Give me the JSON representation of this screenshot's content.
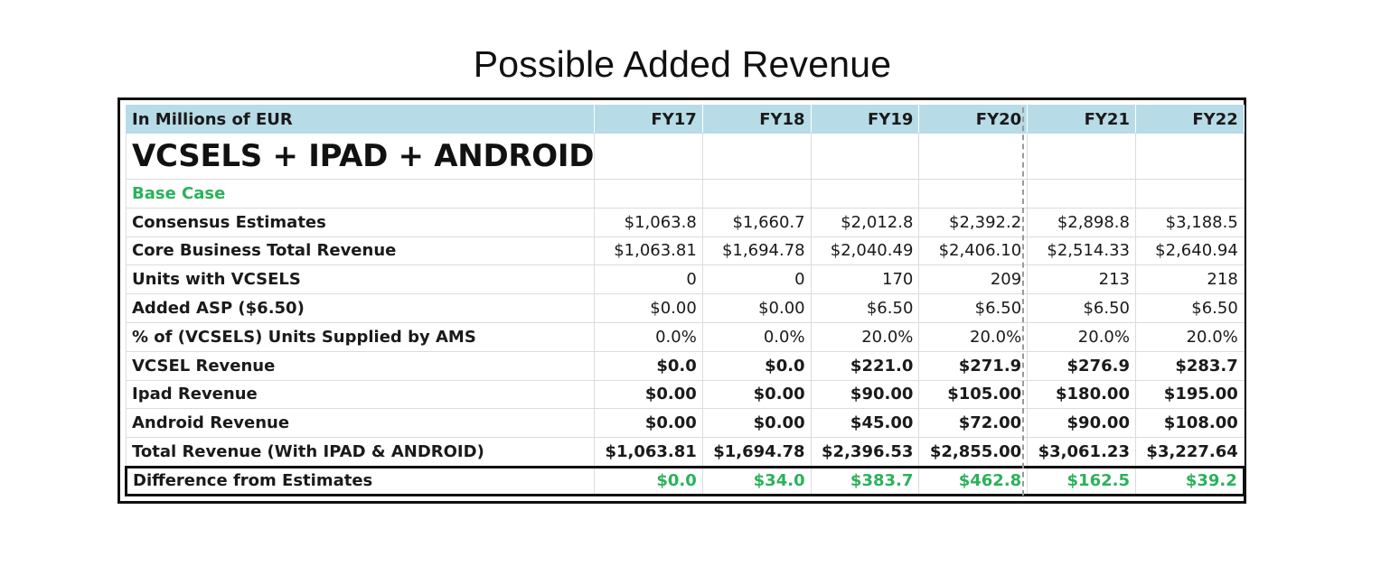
{
  "title": "Possible Added Revenue",
  "colors": {
    "header_bg": "#b7dce7",
    "accent_green": "#2bb25a",
    "border_dark": "#111111"
  },
  "table": {
    "unit_label": "In Millions of EUR",
    "columns": [
      "FY17",
      "FY18",
      "FY19",
      "FY20",
      "FY21",
      "FY22"
    ],
    "group_label": "VCSELS + IPAD + ANDROID",
    "case_label": "Base Case",
    "rows": [
      {
        "label": "Consensus Estimates",
        "values": [
          "$1,063.8",
          "$1,660.7",
          "$2,012.8",
          "$2,392.2",
          "$2,898.8",
          "$3,188.5"
        ]
      },
      {
        "label": "Core Business Total Revenue",
        "values": [
          "$1,063.81",
          "$1,694.78",
          "$2,040.49",
          "$2,406.10",
          "$2,514.33",
          "$2,640.94"
        ]
      },
      {
        "label": "Units with VCSELS",
        "values": [
          "0",
          "0",
          "170",
          "209",
          "213",
          "218"
        ]
      },
      {
        "label": "Added ASP ($6.50)",
        "values": [
          "$0.00",
          "$0.00",
          "$6.50",
          "$6.50",
          "$6.50",
          "$6.50"
        ]
      },
      {
        "label": "% of (VCSELS) Units Supplied by AMS",
        "values": [
          "0.0%",
          "0.0%",
          "20.0%",
          "20.0%",
          "20.0%",
          "20.0%"
        ]
      },
      {
        "label": "VCSEL Revenue",
        "values": [
          "$0.0",
          "$0.0",
          "$221.0",
          "$271.9",
          "$276.9",
          "$283.7"
        ]
      },
      {
        "label": "Ipad Revenue",
        "values": [
          "$0.00",
          "$0.00",
          "$90.00",
          "$105.00",
          "$180.00",
          "$195.00"
        ]
      },
      {
        "label": "Android Revenue",
        "values": [
          "$0.00",
          "$0.00",
          "$45.00",
          "$72.00",
          "$90.00",
          "$108.00"
        ]
      },
      {
        "label": "Total Revenue (With IPAD & ANDROID)",
        "values": [
          "$1,063.81",
          "$1,694.78",
          "$2,396.53",
          "$2,855.00",
          "$3,061.23",
          "$3,227.64"
        ]
      }
    ],
    "difference_row": {
      "label": "Difference from Estimates",
      "values": [
        "$0.0",
        "$34.0",
        "$383.7",
        "$462.8",
        "$162.5",
        "$39.2"
      ]
    }
  }
}
